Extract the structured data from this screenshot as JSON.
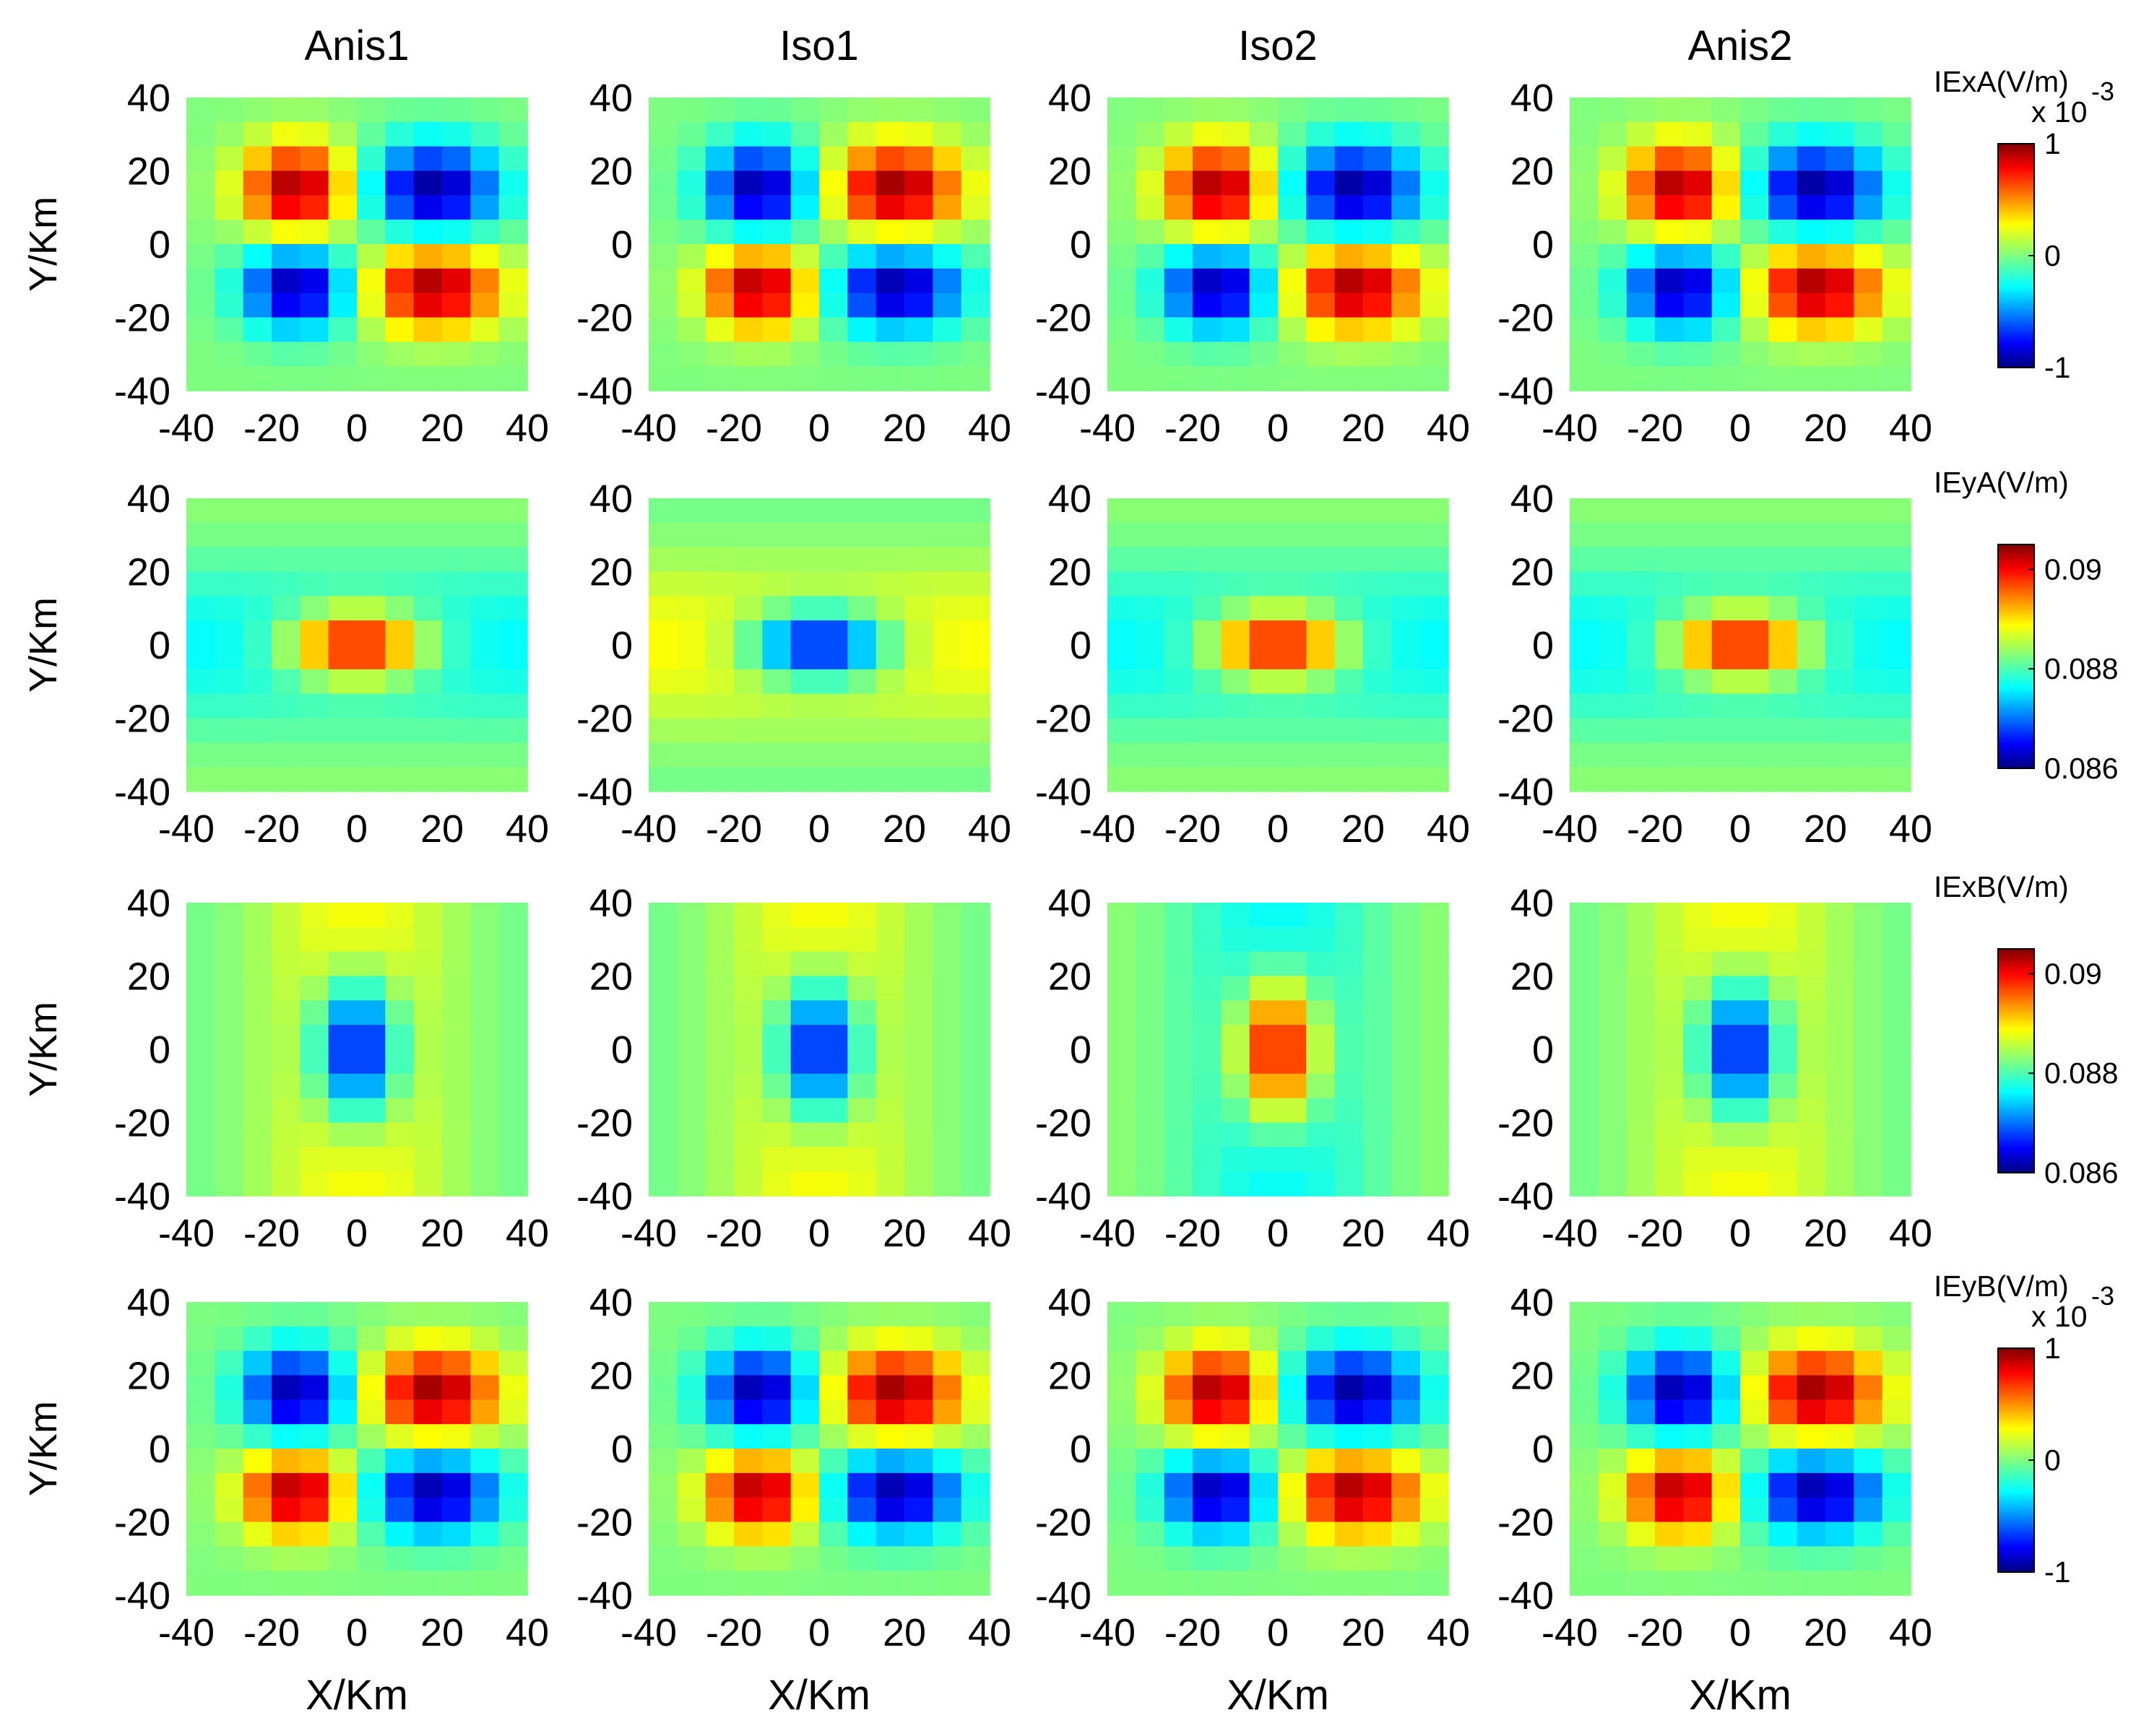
{
  "figure": {
    "columns": [
      "Anis1",
      "Iso1",
      "Iso2",
      "Anis2"
    ],
    "xlabel": "X/Km",
    "ylabel": "Y/Km"
  },
  "colors": {
    "colormap": "jet",
    "stops": [
      "#00007f",
      "#0000ff",
      "#00ffff",
      "#ffff00",
      "#ff0000",
      "#7f0000"
    ]
  },
  "chart_data": [
    {
      "type": "heatmap",
      "row": 1,
      "colorbar": {
        "label": "IExA(V/m)",
        "multiplier": "x 10",
        "exponent": "-3",
        "range": [
          -1,
          1
        ],
        "ticks": [
          "1",
          "0",
          "-1"
        ]
      },
      "x": [
        -40,
        -20,
        0,
        20,
        40
      ],
      "y": [
        -40,
        -20,
        0,
        20,
        40
      ],
      "xlim": [
        -40,
        40
      ],
      "ylim": [
        -40,
        40
      ],
      "xticks": [
        "-40",
        "-20",
        "0",
        "20",
        "40"
      ],
      "yticks": [
        "40",
        "20",
        "0",
        "-20",
        "-40"
      ],
      "panels": [
        {
          "title": "Anis1",
          "pattern": "quadrupole",
          "sign": 1
        },
        {
          "title": "Iso1",
          "pattern": "quadrupole",
          "sign": -1
        },
        {
          "title": "Iso2",
          "pattern": "quadrupole",
          "sign": 1
        },
        {
          "title": "Anis2",
          "pattern": "quadrupole",
          "sign": 1
        }
      ]
    },
    {
      "type": "heatmap",
      "row": 2,
      "colorbar": {
        "label": "IEyA(V/m)",
        "multiplier": "",
        "exponent": "",
        "range": [
          0.086,
          0.0905
        ],
        "ticks": [
          "0.09",
          "0.088",
          "0.086"
        ]
      },
      "x": [
        -40,
        -20,
        0,
        20,
        40
      ],
      "y": [
        -40,
        -20,
        0,
        20,
        40
      ],
      "xlim": [
        -40,
        40
      ],
      "ylim": [
        -40,
        40
      ],
      "xticks": [
        "-40",
        "-20",
        "0",
        "20",
        "40"
      ],
      "yticks": [
        "40",
        "20",
        "0",
        "-20",
        "-40"
      ],
      "panels": [
        {
          "title": "Anis1",
          "pattern": "horizontal",
          "sign": 1
        },
        {
          "title": "Iso1",
          "pattern": "horizontal",
          "sign": -1
        },
        {
          "title": "Iso2",
          "pattern": "horizontal",
          "sign": 1
        },
        {
          "title": "Anis2",
          "pattern": "horizontal",
          "sign": 1
        }
      ]
    },
    {
      "type": "heatmap",
      "row": 3,
      "colorbar": {
        "label": "IExB(V/m)",
        "multiplier": "",
        "exponent": "",
        "range": [
          0.086,
          0.0905
        ],
        "ticks": [
          "0.09",
          "0.088",
          "0.086"
        ]
      },
      "x": [
        -40,
        -20,
        0,
        20,
        40
      ],
      "y": [
        -40,
        -20,
        0,
        20,
        40
      ],
      "xlim": [
        -40,
        40
      ],
      "ylim": [
        -40,
        40
      ],
      "xticks": [
        "-40",
        "-20",
        "0",
        "20",
        "40"
      ],
      "yticks": [
        "40",
        "20",
        "0",
        "-20",
        "-40"
      ],
      "panels": [
        {
          "title": "Anis1",
          "pattern": "vertical",
          "sign": -1
        },
        {
          "title": "Iso1",
          "pattern": "vertical",
          "sign": -1
        },
        {
          "title": "Iso2",
          "pattern": "vertical",
          "sign": 1
        },
        {
          "title": "Anis2",
          "pattern": "vertical",
          "sign": -1
        }
      ]
    },
    {
      "type": "heatmap",
      "row": 4,
      "colorbar": {
        "label": "IEyB(V/m)",
        "multiplier": "x 10",
        "exponent": "-3",
        "range": [
          -1,
          1
        ],
        "ticks": [
          "1",
          "0",
          "-1"
        ]
      },
      "x": [
        -40,
        -20,
        0,
        20,
        40
      ],
      "y": [
        -40,
        -20,
        0,
        20,
        40
      ],
      "xlim": [
        -40,
        40
      ],
      "ylim": [
        -40,
        40
      ],
      "xticks": [
        "-40",
        "-20",
        "0",
        "20",
        "40"
      ],
      "yticks": [
        "40",
        "20",
        "0",
        "-20",
        "-40"
      ],
      "panels": [
        {
          "title": "Anis1",
          "pattern": "quadrupole",
          "sign": -1
        },
        {
          "title": "Iso1",
          "pattern": "quadrupole",
          "sign": -1
        },
        {
          "title": "Iso2",
          "pattern": "quadrupole",
          "sign": 1
        },
        {
          "title": "Anis2",
          "pattern": "quadrupole",
          "sign": -1
        }
      ]
    }
  ]
}
